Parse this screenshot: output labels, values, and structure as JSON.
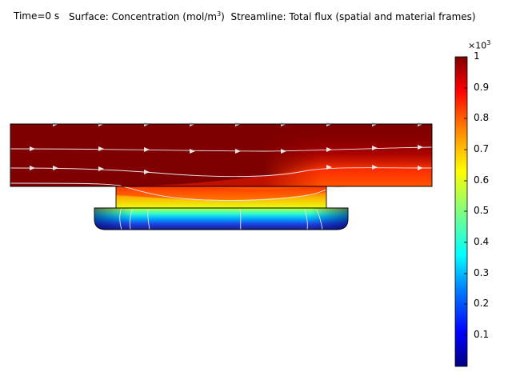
{
  "header": {
    "time_label": "Time=0 s",
    "surface_prefix": "Surface: Concentration (mol/m",
    "surface_exp": "3",
    "surface_suffix": ")",
    "streamline_label": "Streamline: Total flux (spatial and material frames)"
  },
  "colorbar": {
    "multiplier_base": "×10",
    "multiplier_exp": "3",
    "labels": [
      "1",
      "0.9",
      "0.8",
      "0.7",
      "0.6",
      "0.5",
      "0.4",
      "0.3",
      "0.2",
      "0.1"
    ],
    "min": 0,
    "max": 1,
    "colormap": "Rainbow",
    "stops": [
      "#00007f",
      "#0000ff",
      "#0080ff",
      "#00ffff",
      "#80ff80",
      "#ffff00",
      "#ff8000",
      "#ff0000",
      "#7f0000"
    ]
  },
  "colors": {
    "high": "#7f0000",
    "streamline": "#e6e6e6",
    "outline": "#000000"
  }
}
